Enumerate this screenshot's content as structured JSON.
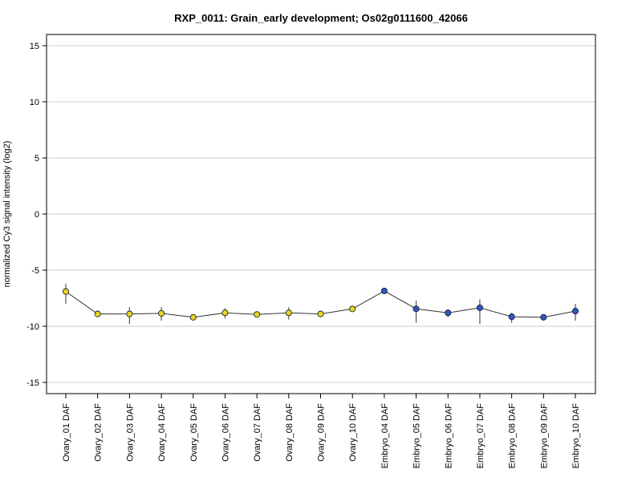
{
  "chart_data": {
    "type": "line",
    "title": "RXP_0011: Grain_early development; Os02g0111600_42066",
    "xlabel": "",
    "ylabel": "normalized Cy3 signal intensity (log2)",
    "ylim": [
      -16,
      16
    ],
    "yticks": [
      -15,
      -10,
      -5,
      0,
      5,
      10,
      15
    ],
    "grid": true,
    "categories": [
      "Ovary_01 DAF",
      "Ovary_02 DAF",
      "Ovary_03 DAF",
      "Ovary_04 DAF",
      "Ovary_05 DAF",
      "Ovary_06 DAF",
      "Ovary_07 DAF",
      "Ovary_08 DAF",
      "Ovary_09 DAF",
      "Ovary_10 DAF",
      "Embryo_04 DAF",
      "Embryo_05 DAF",
      "Embryo_06 DAF",
      "Embryo_07 DAF",
      "Embryo_08 DAF",
      "Embryo_09 DAF",
      "Embryo_10 DAF"
    ],
    "series": [
      {
        "values": [
          -6.9,
          -8.9,
          -8.9,
          -8.85,
          -9.2,
          -8.8,
          -8.95,
          -8.8,
          -8.9,
          -8.45,
          -6.85,
          -8.45,
          -8.8,
          -8.35,
          -9.15,
          -9.2,
          -8.65
        ],
        "err_low": [
          -8.0,
          -9.1,
          -9.8,
          -9.5,
          -9.4,
          -9.3,
          -9.1,
          -9.4,
          -9.0,
          -8.6,
          -7.0,
          -9.7,
          -9.2,
          -9.8,
          -9.7,
          -9.3,
          -9.5
        ],
        "err_high": [
          -6.2,
          -8.6,
          -8.3,
          -8.3,
          -9.0,
          -8.4,
          -8.8,
          -8.3,
          -8.8,
          -8.3,
          -6.6,
          -7.7,
          -8.5,
          -7.6,
          -8.8,
          -9.1,
          -8.0
        ],
        "point_colors": [
          "#e5d51e",
          "#e5d51e",
          "#e5d51e",
          "#e5d51e",
          "#e5d51e",
          "#e5d51e",
          "#e5d51e",
          "#e5d51e",
          "#e5d51e",
          "#e5d51e",
          "#2c56c8",
          "#2c56c8",
          "#2c56c8",
          "#2c56c8",
          "#2c56c8",
          "#2c56c8",
          "#2c56c8"
        ]
      }
    ],
    "line_color": "#333333"
  }
}
